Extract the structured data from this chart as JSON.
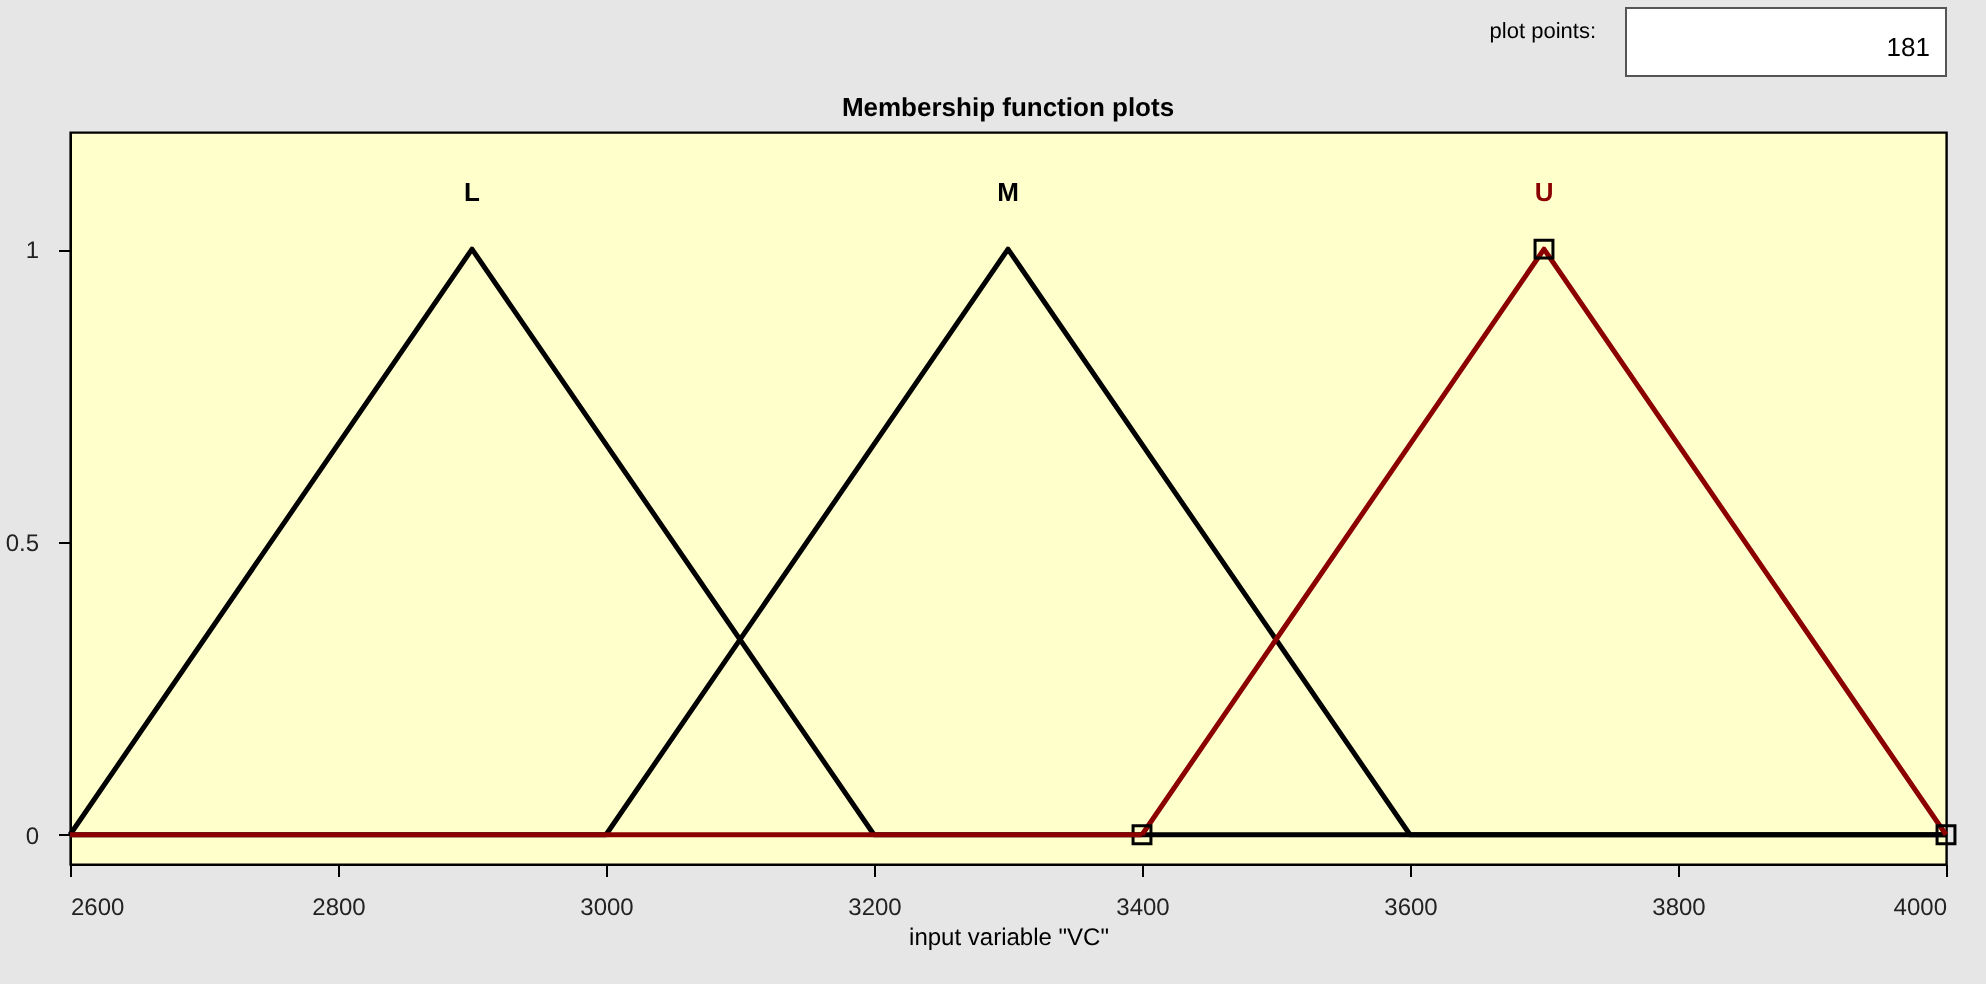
{
  "chart_data": {
    "type": "line",
    "title": "Membership function plots",
    "xlabel": "input variable \"VC\"",
    "annotations": [
      "plot points:",
      "181"
    ],
    "xlim": [
      2600,
      4000
    ],
    "xticks": [
      2600,
      2800,
      3000,
      3200,
      3400,
      3600,
      3800,
      4000
    ],
    "ylim": [
      -0.05,
      1.2
    ],
    "yticks": [
      0,
      0.5,
      1
    ],
    "grid": false,
    "legend": false,
    "line_style": "solid",
    "series": [
      {
        "name": "L",
        "color": "#000000",
        "x": [
          2600,
          2900,
          3200,
          4000
        ],
        "values": [
          0,
          1,
          0,
          0
        ],
        "marker": "none"
      },
      {
        "name": "M",
        "color": "#000000",
        "x": [
          2600,
          3000,
          3300,
          3600,
          4000
        ],
        "values": [
          0,
          0,
          1,
          0,
          0
        ],
        "marker": "none"
      },
      {
        "name": "U",
        "color": "#8b0000",
        "x": [
          3400,
          3700,
          4000
        ],
        "values": [
          0,
          1,
          0
        ],
        "marker": "square"
      },
      {
        "color": "#8b0000",
        "x": [
          2600,
          3400
        ],
        "values": [
          0,
          0
        ],
        "marker": "none"
      }
    ]
  }
}
